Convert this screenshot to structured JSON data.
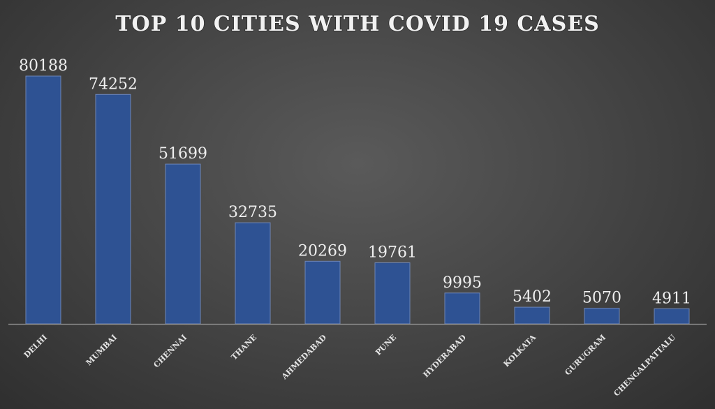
{
  "chart_data": {
    "type": "bar",
    "title": "TOP 10 CITIES WITH COVID 19 CASES",
    "categories": [
      "DELHI",
      "MUMBAI",
      "CHENNAI",
      "THANE",
      "AHMEDABAD",
      "PUNE",
      "HYDERABAD",
      "KOLKATA",
      "GURUGRAM",
      "CHENGALPATTALU"
    ],
    "values": [
      80188,
      74252,
      51699,
      32735,
      20269,
      19761,
      9995,
      5402,
      5070,
      4911
    ],
    "value_labels": [
      "80188",
      "74252",
      "51699",
      "32735",
      "20269",
      "19761",
      "9995",
      "5402",
      "5070",
      "4911"
    ],
    "xlabel": "",
    "ylabel": "",
    "ylim": [
      0,
      80188
    ],
    "grid": false,
    "legend": "none",
    "bar_color": "#2e5293"
  }
}
